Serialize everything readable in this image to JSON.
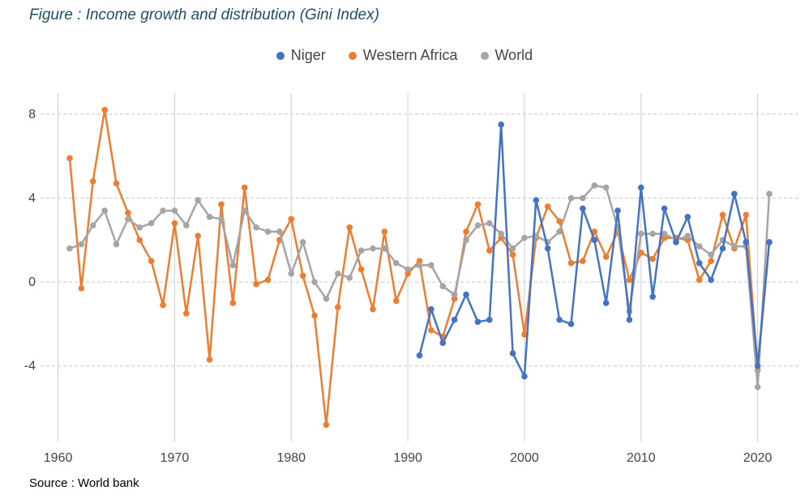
{
  "title": "Figure : Income growth and distribution (Gini Index)",
  "source": "Source : World bank",
  "chart_data": {
    "type": "line",
    "xlim": [
      1958.5,
      2023.5
    ],
    "ylim": [
      -7.6,
      9.0
    ],
    "x_ticks": [
      1960,
      1970,
      1980,
      1990,
      2000,
      2010,
      2020
    ],
    "y_ticks": [
      -4,
      0,
      4,
      8
    ],
    "grid": {
      "vertical": "solid",
      "horizontal": "dashed"
    },
    "legend_position": "top",
    "series": [
      {
        "name": "Western Africa",
        "color": "#ED7D31",
        "points": [
          [
            1961,
            5.9
          ],
          [
            1962,
            -0.3
          ],
          [
            1963,
            4.8
          ],
          [
            1964,
            8.2
          ],
          [
            1965,
            4.7
          ],
          [
            1966,
            3.3
          ],
          [
            1967,
            2.0
          ],
          [
            1968,
            1.0
          ],
          [
            1969,
            -1.1
          ],
          [
            1970,
            2.8
          ],
          [
            1971,
            -1.5
          ],
          [
            1972,
            2.2
          ],
          [
            1973,
            -3.7
          ],
          [
            1974,
            3.7
          ],
          [
            1975,
            -1.0
          ],
          [
            1976,
            4.5
          ],
          [
            1977,
            -0.1
          ],
          [
            1978,
            0.1
          ],
          [
            1979,
            2.0
          ],
          [
            1980,
            3.0
          ],
          [
            1981,
            0.3
          ],
          [
            1982,
            -1.6
          ],
          [
            1983,
            -6.8
          ],
          [
            1984,
            -1.2
          ],
          [
            1985,
            2.6
          ],
          [
            1986,
            0.6
          ],
          [
            1987,
            -1.3
          ],
          [
            1988,
            2.4
          ],
          [
            1989,
            -0.9
          ],
          [
            1990,
            0.4
          ],
          [
            1991,
            1.0
          ],
          [
            1992,
            -2.3
          ],
          [
            1993,
            -2.6
          ],
          [
            1994,
            -0.8
          ],
          [
            1995,
            2.4
          ],
          [
            1996,
            3.7
          ],
          [
            1997,
            1.5
          ],
          [
            1998,
            2.1
          ],
          [
            1999,
            1.3
          ],
          [
            2000,
            -2.5
          ],
          [
            2001,
            2.1
          ],
          [
            2002,
            3.6
          ],
          [
            2003,
            2.9
          ],
          [
            2004,
            0.9
          ],
          [
            2005,
            1.0
          ],
          [
            2006,
            2.4
          ],
          [
            2007,
            1.2
          ],
          [
            2008,
            2.4
          ],
          [
            2009,
            0.1
          ],
          [
            2010,
            1.4
          ],
          [
            2011,
            1.1
          ],
          [
            2012,
            2.1
          ],
          [
            2013,
            2.1
          ],
          [
            2014,
            2.0
          ],
          [
            2015,
            0.1
          ],
          [
            2016,
            1.0
          ],
          [
            2017,
            3.2
          ],
          [
            2018,
            1.6
          ],
          [
            2019,
            3.2
          ],
          [
            2020,
            -4.2
          ],
          [
            2021,
            1.9
          ]
        ]
      },
      {
        "name": "World",
        "color": "#A5A5A5",
        "points": [
          [
            1961,
            1.6
          ],
          [
            1962,
            1.8
          ],
          [
            1963,
            2.7
          ],
          [
            1964,
            3.4
          ],
          [
            1965,
            1.8
          ],
          [
            1966,
            3.0
          ],
          [
            1967,
            2.6
          ],
          [
            1968,
            2.8
          ],
          [
            1969,
            3.4
          ],
          [
            1970,
            3.4
          ],
          [
            1971,
            2.7
          ],
          [
            1972,
            3.9
          ],
          [
            1973,
            3.1
          ],
          [
            1974,
            3.0
          ],
          [
            1975,
            0.8
          ],
          [
            1976,
            3.4
          ],
          [
            1977,
            2.6
          ],
          [
            1978,
            2.4
          ],
          [
            1979,
            2.4
          ],
          [
            1980,
            0.4
          ],
          [
            1981,
            1.9
          ],
          [
            1982,
            0.0
          ],
          [
            1983,
            -0.8
          ],
          [
            1984,
            0.4
          ],
          [
            1985,
            0.2
          ],
          [
            1986,
            1.5
          ],
          [
            1987,
            1.6
          ],
          [
            1988,
            1.6
          ],
          [
            1989,
            0.9
          ],
          [
            1990,
            0.6
          ],
          [
            1991,
            0.8
          ],
          [
            1992,
            0.8
          ],
          [
            1993,
            -0.2
          ],
          [
            1994,
            -0.6
          ],
          [
            1995,
            2.0
          ],
          [
            1996,
            2.7
          ],
          [
            1997,
            2.8
          ],
          [
            1998,
            2.3
          ],
          [
            1999,
            1.6
          ],
          [
            2000,
            2.1
          ],
          [
            2001,
            2.2
          ],
          [
            2002,
            1.9
          ],
          [
            2003,
            2.4
          ],
          [
            2004,
            4.0
          ],
          [
            2005,
            4.0
          ],
          [
            2006,
            4.6
          ],
          [
            2007,
            4.5
          ],
          [
            2008,
            2.6
          ],
          [
            2009,
            -1.4
          ],
          [
            2010,
            2.3
          ],
          [
            2011,
            2.3
          ],
          [
            2012,
            2.3
          ],
          [
            2013,
            2.0
          ],
          [
            2014,
            2.2
          ],
          [
            2015,
            1.7
          ],
          [
            2016,
            1.3
          ],
          [
            2017,
            2.0
          ],
          [
            2018,
            1.7
          ],
          [
            2019,
            1.7
          ],
          [
            2020,
            -5.0
          ],
          [
            2021,
            4.2
          ]
        ]
      },
      {
        "name": "Niger",
        "color": "#4472C4",
        "points": [
          [
            1991,
            -3.5
          ],
          [
            1992,
            -1.3
          ],
          [
            1993,
            -2.9
          ],
          [
            1994,
            -1.8
          ],
          [
            1995,
            -0.6
          ],
          [
            1996,
            -1.9
          ],
          [
            1997,
            -1.8
          ],
          [
            1998,
            7.5
          ],
          [
            1999,
            -3.4
          ],
          [
            2000,
            -4.5
          ],
          [
            2001,
            3.9
          ],
          [
            2002,
            1.6
          ],
          [
            2003,
            -1.8
          ],
          [
            2004,
            -2.0
          ],
          [
            2005,
            3.5
          ],
          [
            2006,
            2.0
          ],
          [
            2007,
            -1.0
          ],
          [
            2008,
            3.4
          ],
          [
            2009,
            -1.8
          ],
          [
            2010,
            4.5
          ],
          [
            2011,
            -0.7
          ],
          [
            2012,
            3.5
          ],
          [
            2013,
            1.9
          ],
          [
            2014,
            3.1
          ],
          [
            2015,
            0.9
          ],
          [
            2016,
            0.1
          ],
          [
            2017,
            1.6
          ],
          [
            2018,
            4.2
          ],
          [
            2019,
            1.9
          ],
          [
            2020,
            -4.0
          ],
          [
            2021,
            1.9
          ]
        ]
      }
    ],
    "legend": [
      {
        "name": "Niger",
        "color": "#4472C4"
      },
      {
        "name": "Western Africa",
        "color": "#ED7D31"
      },
      {
        "name": "World",
        "color": "#A5A5A5"
      }
    ]
  }
}
